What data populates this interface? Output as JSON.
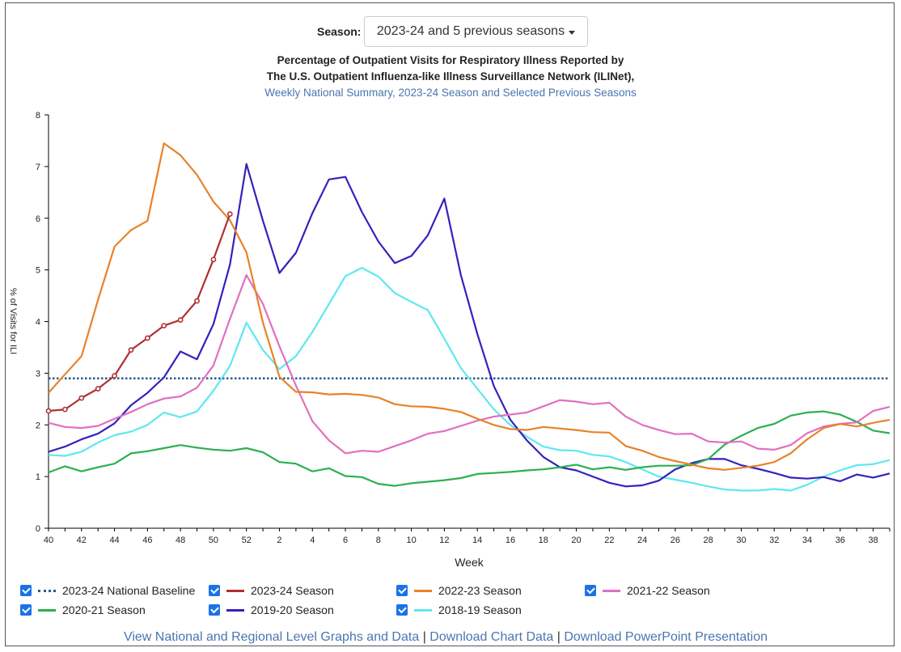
{
  "season": {
    "label": "Season:",
    "selected": "2023-24 and 5 previous seasons"
  },
  "titles": {
    "line1": "Percentage of Outpatient Visits for Respiratory Illness Reported by",
    "line2": "The U.S. Outpatient Influenza-like Illness Surveillance Network (ILINet),",
    "subtitle": "Weekly National Summary, 2023-24 Season and Selected Previous Seasons"
  },
  "footer": {
    "link1": "View National and Regional Level Graphs and Data",
    "link2": "Download Chart Data",
    "link3": "Download PowerPoint Presentation",
    "separator": "|"
  },
  "chart_data": {
    "type": "line",
    "xlabel": "Week",
    "ylabel": "% of Visits for ILI",
    "ylim": [
      0,
      8
    ],
    "yticks": [
      "0",
      "1",
      "2",
      "3",
      "4",
      "5",
      "6",
      "7",
      "8"
    ],
    "x_weeks": [
      40,
      41,
      42,
      43,
      44,
      45,
      46,
      47,
      48,
      49,
      50,
      51,
      52,
      1,
      2,
      3,
      4,
      5,
      6,
      7,
      8,
      9,
      10,
      11,
      12,
      13,
      14,
      15,
      16,
      17,
      18,
      19,
      20,
      21,
      22,
      23,
      24,
      25,
      26,
      27,
      28,
      29,
      30,
      31,
      32,
      33,
      34,
      35,
      36,
      37,
      38,
      39
    ],
    "x_tick_labels": [
      "40",
      "42",
      "44",
      "46",
      "48",
      "50",
      "52",
      "2",
      "4",
      "6",
      "8",
      "10",
      "12",
      "14",
      "16",
      "18",
      "20",
      "22",
      "24",
      "26",
      "28",
      "30",
      "32",
      "34",
      "36",
      "38"
    ],
    "baseline": {
      "name": "2023-24 National Baseline",
      "value": 2.9,
      "color": "#2a5a8a"
    },
    "series": [
      {
        "name": "2023-24 Season",
        "color": "#b03030",
        "markers": true,
        "values": [
          2.27,
          2.3,
          2.52,
          2.7,
          2.95,
          3.45,
          3.68,
          3.92,
          4.03,
          4.4,
          5.2,
          6.08
        ]
      },
      {
        "name": "2022-23 Season",
        "color": "#e8822a",
        "values": [
          2.62,
          2.98,
          3.33,
          4.42,
          5.45,
          5.77,
          5.95,
          7.45,
          7.22,
          6.84,
          6.32,
          5.96,
          5.34,
          3.98,
          2.93,
          2.64,
          2.63,
          2.59,
          2.6,
          2.58,
          2.53,
          2.4,
          2.36,
          2.35,
          2.31,
          2.25,
          2.12,
          2.0,
          1.92,
          1.9,
          1.96,
          1.93,
          1.9,
          1.86,
          1.85,
          1.59,
          1.5,
          1.38,
          1.3,
          1.23,
          1.16,
          1.13,
          1.17,
          1.21,
          1.28,
          1.45,
          1.72,
          1.94,
          2.02,
          1.97,
          2.04,
          2.1
        ]
      },
      {
        "name": "2021-22 Season",
        "color": "#e070c0",
        "values": [
          2.04,
          1.96,
          1.94,
          1.98,
          2.12,
          2.25,
          2.4,
          2.51,
          2.55,
          2.72,
          3.15,
          4.05,
          4.9,
          4.34,
          3.52,
          2.76,
          2.07,
          1.7,
          1.45,
          1.5,
          1.48,
          1.59,
          1.7,
          1.83,
          1.88,
          1.98,
          2.08,
          2.16,
          2.2,
          2.24,
          2.36,
          2.48,
          2.45,
          2.4,
          2.43,
          2.16,
          2.0,
          1.9,
          1.82,
          1.83,
          1.68,
          1.66,
          1.68,
          1.54,
          1.52,
          1.61,
          1.84,
          1.97,
          2.02,
          2.05,
          2.27,
          2.35
        ]
      },
      {
        "name": "2020-21 Season",
        "color": "#2bb050",
        "values": [
          1.08,
          1.2,
          1.1,
          1.18,
          1.25,
          1.45,
          1.49,
          1.55,
          1.61,
          1.56,
          1.52,
          1.5,
          1.55,
          1.47,
          1.28,
          1.25,
          1.1,
          1.16,
          1.01,
          0.99,
          0.86,
          0.82,
          0.87,
          0.9,
          0.93,
          0.97,
          1.05,
          1.07,
          1.09,
          1.12,
          1.14,
          1.18,
          1.23,
          1.14,
          1.18,
          1.13,
          1.18,
          1.21,
          1.21,
          1.22,
          1.34,
          1.62,
          1.79,
          1.94,
          2.02,
          2.18,
          2.24,
          2.26,
          2.2,
          2.06,
          1.89,
          1.84
        ]
      },
      {
        "name": "2019-20 Season",
        "color": "#3322bb",
        "values": [
          1.48,
          1.58,
          1.72,
          1.83,
          2.03,
          2.38,
          2.62,
          2.92,
          3.42,
          3.27,
          3.95,
          5.1,
          7.05,
          5.95,
          4.94,
          5.33,
          6.1,
          6.75,
          6.8,
          6.12,
          5.55,
          5.13,
          5.27,
          5.67,
          6.38,
          4.9,
          3.76,
          2.75,
          2.1,
          1.7,
          1.38,
          1.18,
          1.12,
          1.0,
          0.88,
          0.81,
          0.83,
          0.92,
          1.14,
          1.26,
          1.34,
          1.34,
          1.22,
          1.15,
          1.07,
          0.98,
          0.96,
          0.99,
          0.91,
          1.04,
          0.98,
          1.06
        ]
      },
      {
        "name": "2018-19 Season",
        "color": "#5ee8f0",
        "values": [
          1.42,
          1.4,
          1.48,
          1.66,
          1.8,
          1.87,
          2.0,
          2.24,
          2.15,
          2.26,
          2.66,
          3.14,
          3.98,
          3.45,
          3.08,
          3.33,
          3.8,
          4.34,
          4.88,
          5.04,
          4.87,
          4.55,
          4.38,
          4.22,
          3.67,
          3.1,
          2.7,
          2.3,
          2.0,
          1.77,
          1.58,
          1.51,
          1.5,
          1.42,
          1.39,
          1.28,
          1.14,
          1.0,
          0.94,
          0.88,
          0.81,
          0.75,
          0.73,
          0.73,
          0.76,
          0.73,
          0.84,
          1.0,
          1.12,
          1.22,
          1.24,
          1.32
        ]
      }
    ]
  },
  "legend": [
    {
      "label": "2023-24 National Baseline",
      "color": "#2a5a8a",
      "dotted": true
    },
    {
      "label": "2023-24 Season",
      "color": "#b03030"
    },
    {
      "label": "2022-23 Season",
      "color": "#e8822a"
    },
    {
      "label": "2021-22 Season",
      "color": "#e070c0"
    },
    {
      "label": "2020-21 Season",
      "color": "#2bb050"
    },
    {
      "label": "2019-20 Season",
      "color": "#3322bb"
    },
    {
      "label": "2018-19 Season",
      "color": "#5ee8f0"
    }
  ]
}
